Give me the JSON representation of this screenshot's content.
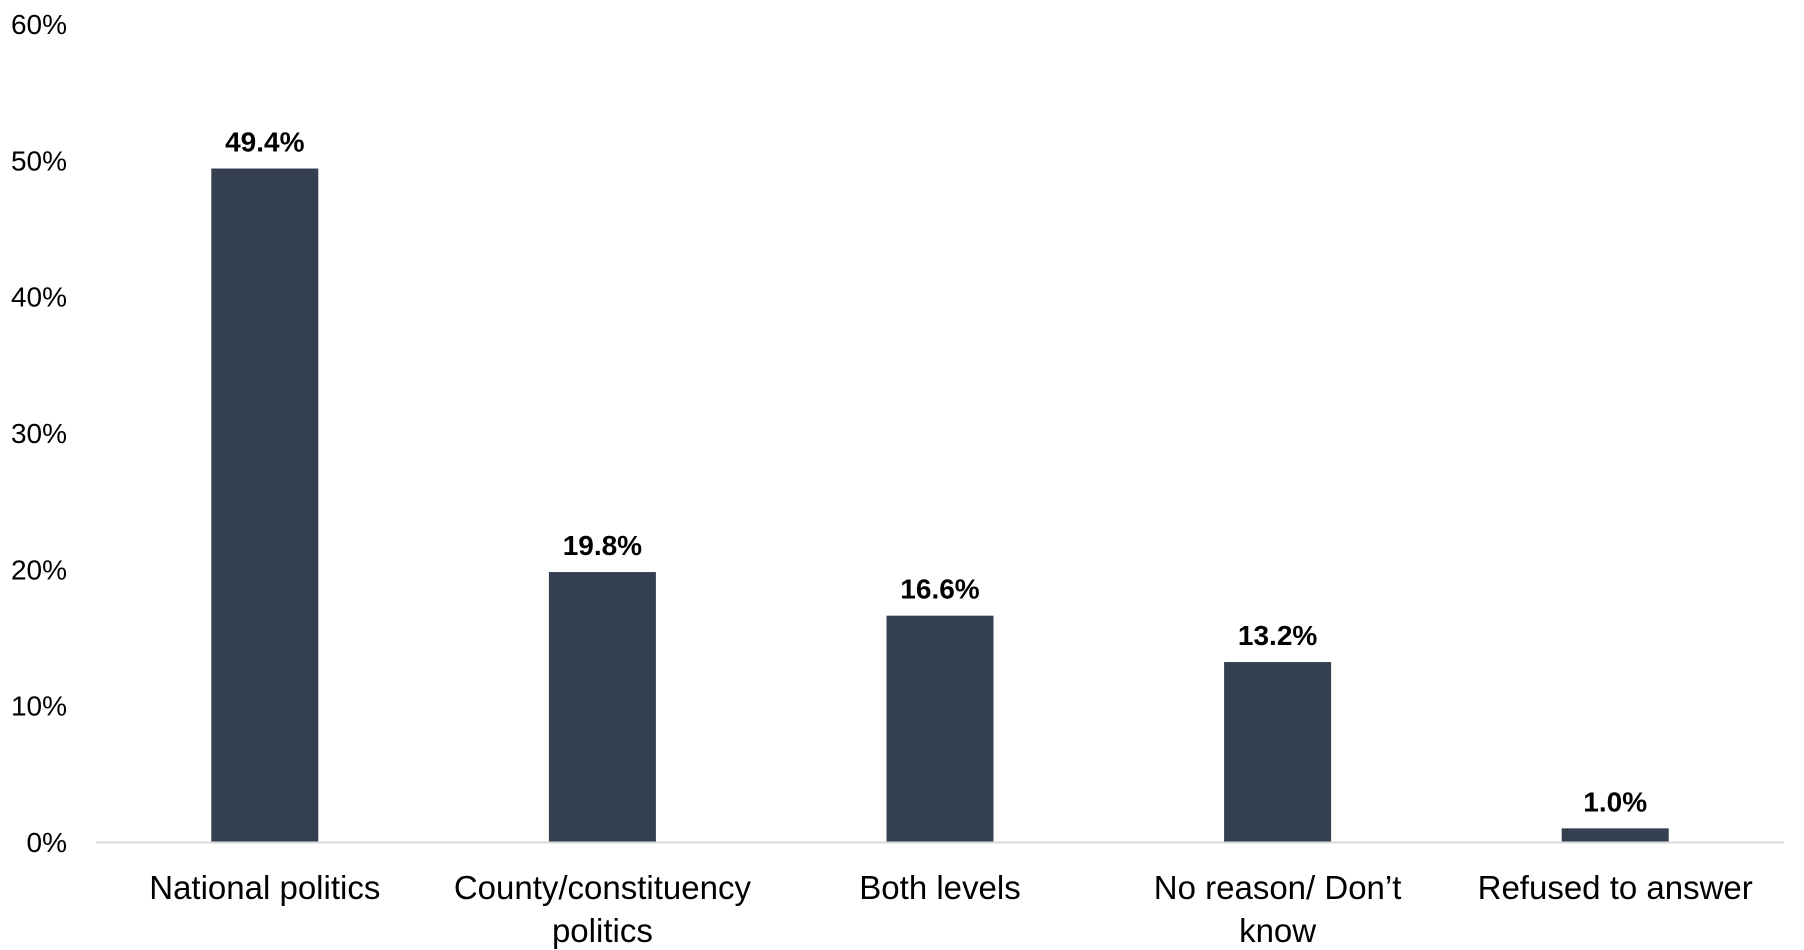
{
  "chart_data": {
    "type": "bar",
    "categories": [
      "National politics",
      "County/constituency politics",
      "Both levels",
      "No reason/ Don’t know",
      "Refused to answer"
    ],
    "category_label_lines": [
      [
        "National politics"
      ],
      [
        "County/constituency",
        "politics"
      ],
      [
        "Both levels"
      ],
      [
        "No reason/ Don’t",
        "know"
      ],
      [
        "Refused to answer"
      ]
    ],
    "values": [
      49.4,
      19.8,
      16.6,
      13.2,
      1.0
    ],
    "data_labels": [
      "49.4%",
      "19.8%",
      "16.6%",
      "13.2%",
      "1.0%"
    ],
    "y_ticks": [
      0,
      10,
      20,
      30,
      40,
      50,
      60
    ],
    "y_tick_labels": [
      "0%",
      "10%",
      "20%",
      "30%",
      "40%",
      "50%",
      "60%"
    ],
    "ylim": [
      0,
      60
    ],
    "title": "",
    "xlabel": "",
    "ylabel": "",
    "grid": false,
    "legend": "none",
    "bar_color": "#343f50",
    "axis_color": "#d9d9d9"
  }
}
